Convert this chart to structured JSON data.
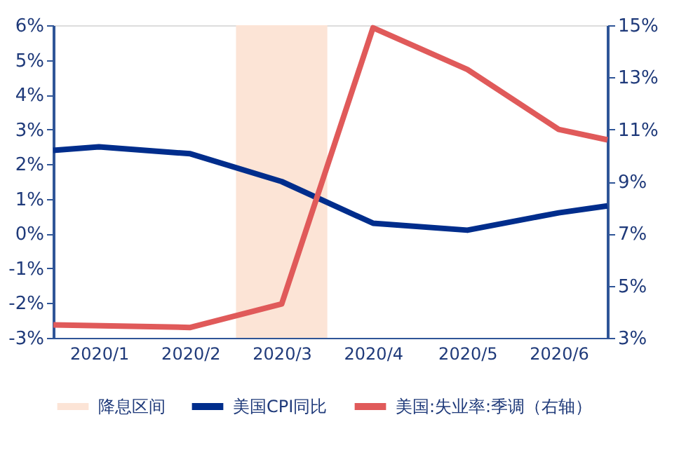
{
  "chart_data": {
    "type": "line",
    "xlim": [
      "2020-01-01",
      "2020-07-01"
    ],
    "xticks": [
      {
        "value": "2020-01-16",
        "label": "2020/1"
      },
      {
        "value": "2020-02-15",
        "label": "2020/2"
      },
      {
        "value": "2020-03-16",
        "label": "2020/3"
      },
      {
        "value": "2020-04-15",
        "label": "2020/4"
      },
      {
        "value": "2020-05-16",
        "label": "2020/5"
      },
      {
        "value": "2020-06-15",
        "label": "2020/6"
      }
    ],
    "ylim": [
      -3,
      6
    ],
    "yticks": [
      {
        "value": -3,
        "label": "-3%"
      },
      {
        "value": -2,
        "label": "-2%"
      },
      {
        "value": -1,
        "label": "-1%"
      },
      {
        "value": 0,
        "label": "0%"
      },
      {
        "value": 1,
        "label": "1%"
      },
      {
        "value": 2,
        "label": "2%"
      },
      {
        "value": 3,
        "label": "3%"
      },
      {
        "value": 4,
        "label": "4%"
      },
      {
        "value": 5,
        "label": "5%"
      },
      {
        "value": 6,
        "label": "6%"
      }
    ],
    "y2lim": [
      3,
      15
    ],
    "y2ticks": [
      {
        "value": 3,
        "label": "3%"
      },
      {
        "value": 5,
        "label": "5%"
      },
      {
        "value": 7,
        "label": "7%"
      },
      {
        "value": 9,
        "label": "9%"
      },
      {
        "value": 11,
        "label": "11%"
      },
      {
        "value": 13,
        "label": "13%"
      },
      {
        "value": 15,
        "label": "15%"
      }
    ],
    "series": [
      {
        "name": "美国CPI同比",
        "color": "#002D8C",
        "x": [
          "2020-01-01",
          "2020-01-16",
          "2020-02-15",
          "2020-03-16",
          "2020-04-15",
          "2020-05-16",
          "2020-06-15",
          "2020-07-01"
        ],
        "values": [
          2.4,
          2.5,
          2.3,
          1.5,
          0.3,
          0.1,
          0.6,
          0.8
        ]
      },
      {
        "name": "美国:失业率:季调（右轴）",
        "color": "#E05A5A",
        "axis": "y2",
        "x": [
          "2020-01-01",
          "2020-02-15",
          "2020-03-16",
          "2020-04-15",
          "2020-05-16",
          "2020-06-15",
          "2020-07-01"
        ],
        "values": [
          3.5,
          3.4,
          4.3,
          14.9,
          13.3,
          11.0,
          10.6
        ]
      }
    ],
    "bands": [
      {
        "axis": "x",
        "from": "2020-03-01",
        "to": "2020-03-31",
        "label": "降息区间",
        "color": "#FCE4D6"
      }
    ],
    "grid": false,
    "legend": "bottom",
    "marker": "none",
    "line_style": "solid"
  }
}
